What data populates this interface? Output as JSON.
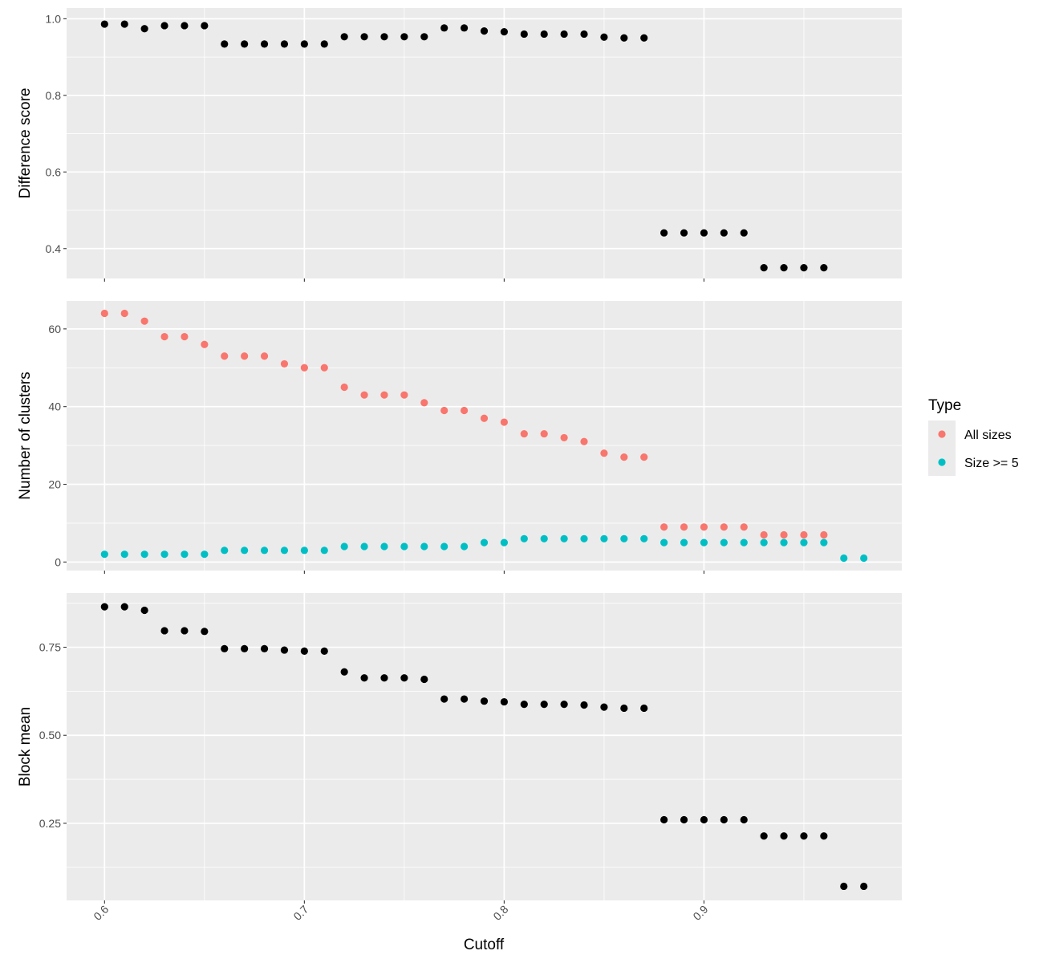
{
  "chart_data": {
    "type": "scatter",
    "shared_x": {
      "label": "Cutoff",
      "range": [
        0.581,
        0.999
      ],
      "ticks": [
        0.6,
        0.7,
        0.8,
        0.9
      ],
      "tick_labels": [
        "0.6",
        "0.7",
        "0.8",
        "0.9"
      ]
    },
    "panels": [
      {
        "id": "difference",
        "ylabel": "Difference score",
        "ylim": [
          0.322,
          1.028
        ],
        "yticks": [
          0.4,
          0.6,
          0.8,
          1.0
        ],
        "ytick_labels": [
          "0.4",
          "0.6",
          "0.8",
          "1.0"
        ],
        "series": [
          {
            "color": "#000000",
            "x": [
              0.6,
              0.61,
              0.62,
              0.63,
              0.64,
              0.65,
              0.66,
              0.67,
              0.68,
              0.69,
              0.7,
              0.71,
              0.72,
              0.73,
              0.74,
              0.75,
              0.76,
              0.77,
              0.78,
              0.79,
              0.8,
              0.81,
              0.82,
              0.83,
              0.84,
              0.85,
              0.86,
              0.87,
              0.88,
              0.89,
              0.9,
              0.91,
              0.92,
              0.93,
              0.94,
              0.95,
              0.96
            ],
            "y": [
              0.986,
              0.986,
              0.974,
              0.982,
              0.982,
              0.982,
              0.934,
              0.934,
              0.934,
              0.934,
              0.934,
              0.934,
              0.953,
              0.953,
              0.953,
              0.953,
              0.953,
              0.976,
              0.976,
              0.968,
              0.966,
              0.96,
              0.96,
              0.96,
              0.96,
              0.952,
              0.95,
              0.95,
              0.441,
              0.441,
              0.441,
              0.441,
              0.441,
              0.35,
              0.35,
              0.35,
              0.35
            ]
          }
        ]
      },
      {
        "id": "clusters",
        "ylabel": "Number of clusters",
        "ylim": [
          -2.2,
          67.2
        ],
        "yticks": [
          0,
          20,
          40,
          60
        ],
        "ytick_labels": [
          "0",
          "20",
          "40",
          "60"
        ],
        "series": [
          {
            "name": "All sizes",
            "color": "#F8766D",
            "x": [
              0.6,
              0.61,
              0.62,
              0.63,
              0.64,
              0.65,
              0.66,
              0.67,
              0.68,
              0.69,
              0.7,
              0.71,
              0.72,
              0.73,
              0.74,
              0.75,
              0.76,
              0.77,
              0.78,
              0.79,
              0.8,
              0.81,
              0.82,
              0.83,
              0.84,
              0.85,
              0.86,
              0.87,
              0.88,
              0.89,
              0.9,
              0.91,
              0.92,
              0.93,
              0.94,
              0.95,
              0.96
            ],
            "y": [
              64,
              64,
              62,
              58,
              58,
              56,
              53,
              53,
              53,
              51,
              50,
              50,
              45,
              43,
              43,
              43,
              41,
              39,
              39,
              37,
              36,
              33,
              33,
              32,
              31,
              28,
              27,
              27,
              9,
              9,
              9,
              9,
              9,
              7,
              7,
              7,
              7
            ]
          },
          {
            "name": "Size >= 5",
            "color": "#00BFC4",
            "x": [
              0.6,
              0.61,
              0.62,
              0.63,
              0.64,
              0.65,
              0.66,
              0.67,
              0.68,
              0.69,
              0.7,
              0.71,
              0.72,
              0.73,
              0.74,
              0.75,
              0.76,
              0.77,
              0.78,
              0.79,
              0.8,
              0.81,
              0.82,
              0.83,
              0.84,
              0.85,
              0.86,
              0.87,
              0.88,
              0.89,
              0.9,
              0.91,
              0.92,
              0.93,
              0.94,
              0.95,
              0.96,
              0.97,
              0.98
            ],
            "y": [
              2,
              2,
              2,
              2,
              2,
              2,
              3,
              3,
              3,
              3,
              3,
              3,
              4,
              4,
              4,
              4,
              4,
              4,
              4,
              5,
              5,
              6,
              6,
              6,
              6,
              6,
              6,
              6,
              5,
              5,
              5,
              5,
              5,
              5,
              5,
              5,
              5,
              1,
              1
            ]
          }
        ]
      },
      {
        "id": "blockmean",
        "ylabel": "Block mean",
        "ylim": [
          0.031,
          0.904
        ],
        "yticks": [
          0.25,
          0.5,
          0.75
        ],
        "ytick_labels": [
          "0.25",
          "0.50",
          "0.75"
        ],
        "series": [
          {
            "color": "#000000",
            "x": [
              0.6,
              0.61,
              0.62,
              0.63,
              0.64,
              0.65,
              0.66,
              0.67,
              0.68,
              0.69,
              0.7,
              0.71,
              0.72,
              0.73,
              0.74,
              0.75,
              0.76,
              0.77,
              0.78,
              0.79,
              0.8,
              0.81,
              0.82,
              0.83,
              0.84,
              0.85,
              0.86,
              0.87,
              0.88,
              0.89,
              0.9,
              0.91,
              0.92,
              0.93,
              0.94,
              0.95,
              0.96,
              0.97,
              0.98
            ],
            "y": [
              0.865,
              0.865,
              0.855,
              0.797,
              0.797,
              0.795,
              0.746,
              0.746,
              0.746,
              0.742,
              0.739,
              0.739,
              0.68,
              0.663,
              0.663,
              0.663,
              0.659,
              0.603,
              0.603,
              0.597,
              0.595,
              0.588,
              0.588,
              0.588,
              0.586,
              0.58,
              0.577,
              0.577,
              0.26,
              0.26,
              0.26,
              0.26,
              0.26,
              0.214,
              0.214,
              0.214,
              0.214,
              0.071,
              0.071
            ]
          }
        ]
      }
    ],
    "legend": {
      "title": "Type",
      "position": "right",
      "items": [
        {
          "label": "All sizes",
          "color": "#F8766D"
        },
        {
          "label": "Size >= 5",
          "color": "#00BFC4"
        }
      ]
    },
    "grid": true,
    "panel_background": "#EBEBEB",
    "grid_color": "#FFFFFF"
  }
}
